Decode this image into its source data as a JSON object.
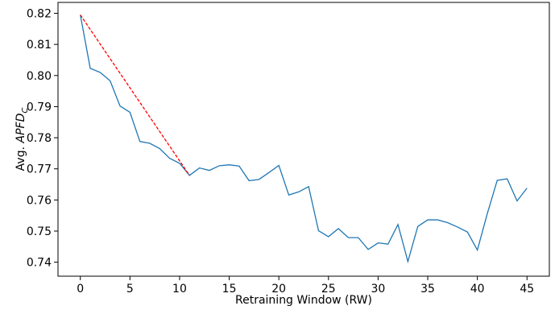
{
  "chart_data": {
    "type": "line",
    "xlabel": "Retraining Window (RW)",
    "ylabel_prefix": "Avg. ",
    "ylabel_main": "APFD",
    "ylabel_sub": "C",
    "xlim": [
      -2.25,
      47.25
    ],
    "ylim": [
      0.7355,
      0.8235
    ],
    "x_ticks": [
      0,
      5,
      10,
      15,
      20,
      25,
      30,
      35,
      40,
      45
    ],
    "y_ticks": [
      0.74,
      0.75,
      0.76,
      0.77,
      0.78,
      0.79,
      0.8,
      0.81,
      0.82
    ],
    "grid": false,
    "series": [
      {
        "color": "#1f77b4",
        "style": "solid",
        "x": [
          0,
          1,
          2,
          3,
          4,
          5,
          6,
          7,
          8,
          9,
          10,
          11,
          12,
          13,
          14,
          15,
          16,
          17,
          18,
          19,
          20,
          21,
          22,
          23,
          24,
          25,
          26,
          27,
          28,
          29,
          30,
          31,
          32,
          33,
          34,
          35,
          36,
          37,
          38,
          39,
          40,
          41,
          42,
          43,
          44,
          45
        ],
        "y": [
          0.8195,
          0.8023,
          0.801,
          0.7983,
          0.7902,
          0.7882,
          0.7788,
          0.7782,
          0.7765,
          0.7734,
          0.7718,
          0.7679,
          0.7703,
          0.7695,
          0.771,
          0.7713,
          0.7709,
          0.7662,
          0.7666,
          0.7688,
          0.7711,
          0.7616,
          0.7626,
          0.7643,
          0.7501,
          0.7482,
          0.7508,
          0.7479,
          0.7479,
          0.7441,
          0.7462,
          0.7458,
          0.7521,
          0.7402,
          0.7515,
          0.7536,
          0.7536,
          0.7527,
          0.7513,
          0.7497,
          0.7439,
          0.7556,
          0.7663,
          0.7668,
          0.7597,
          0.7638
        ]
      },
      {
        "color": "#ff0000",
        "style": "dashed",
        "x": [
          0,
          11
        ],
        "y": [
          0.8195,
          0.7679
        ]
      }
    ]
  }
}
